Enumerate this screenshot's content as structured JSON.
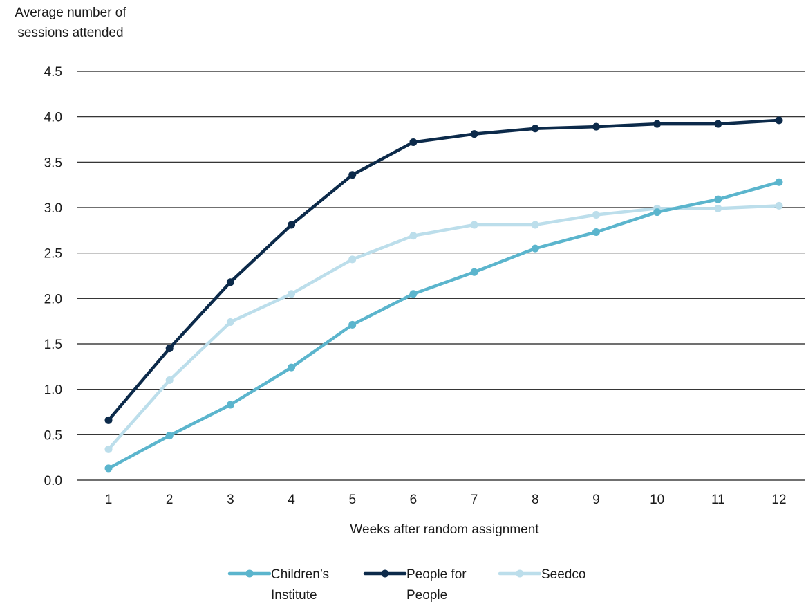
{
  "chart_data": {
    "type": "line",
    "title": "",
    "ylabel_lines": [
      "Average number of",
      "sessions attended"
    ],
    "xlabel": "Weeks after random assignment",
    "ylim": [
      0,
      4.5
    ],
    "yticks": [
      "0.0",
      "0.5",
      "1.0",
      "1.5",
      "2.0",
      "2.5",
      "3.0",
      "3.5",
      "4.0",
      "4.5"
    ],
    "x": [
      1,
      2,
      3,
      4,
      5,
      6,
      7,
      8,
      9,
      10,
      11,
      12
    ],
    "grid": "horizontal",
    "legend_position": "bottom-center",
    "series": [
      {
        "name_lines": [
          "Children’s",
          "Institute"
        ],
        "color": "#5bb5cd",
        "values": [
          0.13,
          0.49,
          0.83,
          1.24,
          1.71,
          2.05,
          2.29,
          2.55,
          2.73,
          2.95,
          3.09,
          3.28
        ]
      },
      {
        "name_lines": [
          "People for",
          "People"
        ],
        "color": "#0c2a4a",
        "values": [
          0.66,
          1.45,
          2.18,
          2.81,
          3.36,
          3.72,
          3.81,
          3.87,
          3.89,
          3.92,
          3.92,
          3.96
        ]
      },
      {
        "name_lines": [
          "Seedco"
        ],
        "color": "#bcdeeb",
        "values": [
          0.34,
          1.1,
          1.74,
          2.05,
          2.43,
          2.69,
          2.81,
          2.81,
          2.92,
          2.99,
          2.99,
          3.02
        ]
      }
    ]
  }
}
